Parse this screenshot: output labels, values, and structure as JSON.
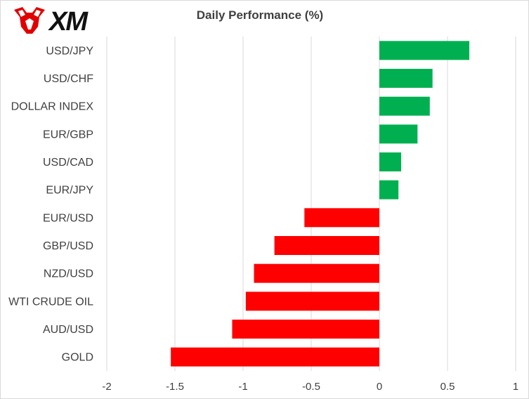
{
  "brand": {
    "logo_text": "XM",
    "logo_icon": "bull-icon",
    "logo_color": "#e10000"
  },
  "chart_data": {
    "type": "bar",
    "orientation": "horizontal",
    "title": "Daily Performance (%)",
    "categories": [
      "USD/JPY",
      "USD/CHF",
      "DOLLAR INDEX",
      "EUR/GBP",
      "USD/CAD",
      "EUR/JPY",
      "EUR/USD",
      "GBP/USD",
      "NZD/USD",
      "WTI CRUDE OIL",
      "AUD/USD",
      "GOLD"
    ],
    "values": [
      0.66,
      0.39,
      0.37,
      0.28,
      0.16,
      0.14,
      -0.55,
      -0.77,
      -0.92,
      -0.98,
      -1.08,
      -1.53
    ],
    "xlim": [
      -2,
      1
    ],
    "xticks": [
      -2,
      -1.5,
      -1,
      -0.5,
      0,
      0.5,
      1
    ],
    "xtick_labels": [
      "-2",
      "-1.5",
      "-1",
      "-0.5",
      "0",
      "0.5",
      "1"
    ],
    "grid": "vertical",
    "colors": {
      "positive": "#00b050",
      "negative": "#ff0000",
      "grid": "#d9d9d9"
    }
  }
}
